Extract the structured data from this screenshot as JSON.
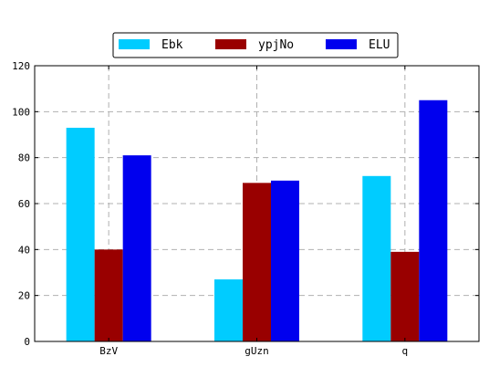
{
  "chart_data": {
    "type": "bar",
    "categories": [
      "BzV",
      "gUzn",
      "q"
    ],
    "series": [
      {
        "name": "Ebk",
        "color": "#00ccff",
        "values": [
          93,
          27,
          72
        ]
      },
      {
        "name": "ypjNo",
        "color": "#990000",
        "values": [
          40,
          69,
          39
        ]
      },
      {
        "name": "ELU",
        "color": "#0000ee",
        "values": [
          81,
          70,
          105
        ]
      }
    ],
    "ylim": [
      0,
      120
    ],
    "yticks": [
      0,
      20,
      40,
      60,
      80,
      100,
      120
    ],
    "grid": true,
    "legend_position": "top-center"
  }
}
